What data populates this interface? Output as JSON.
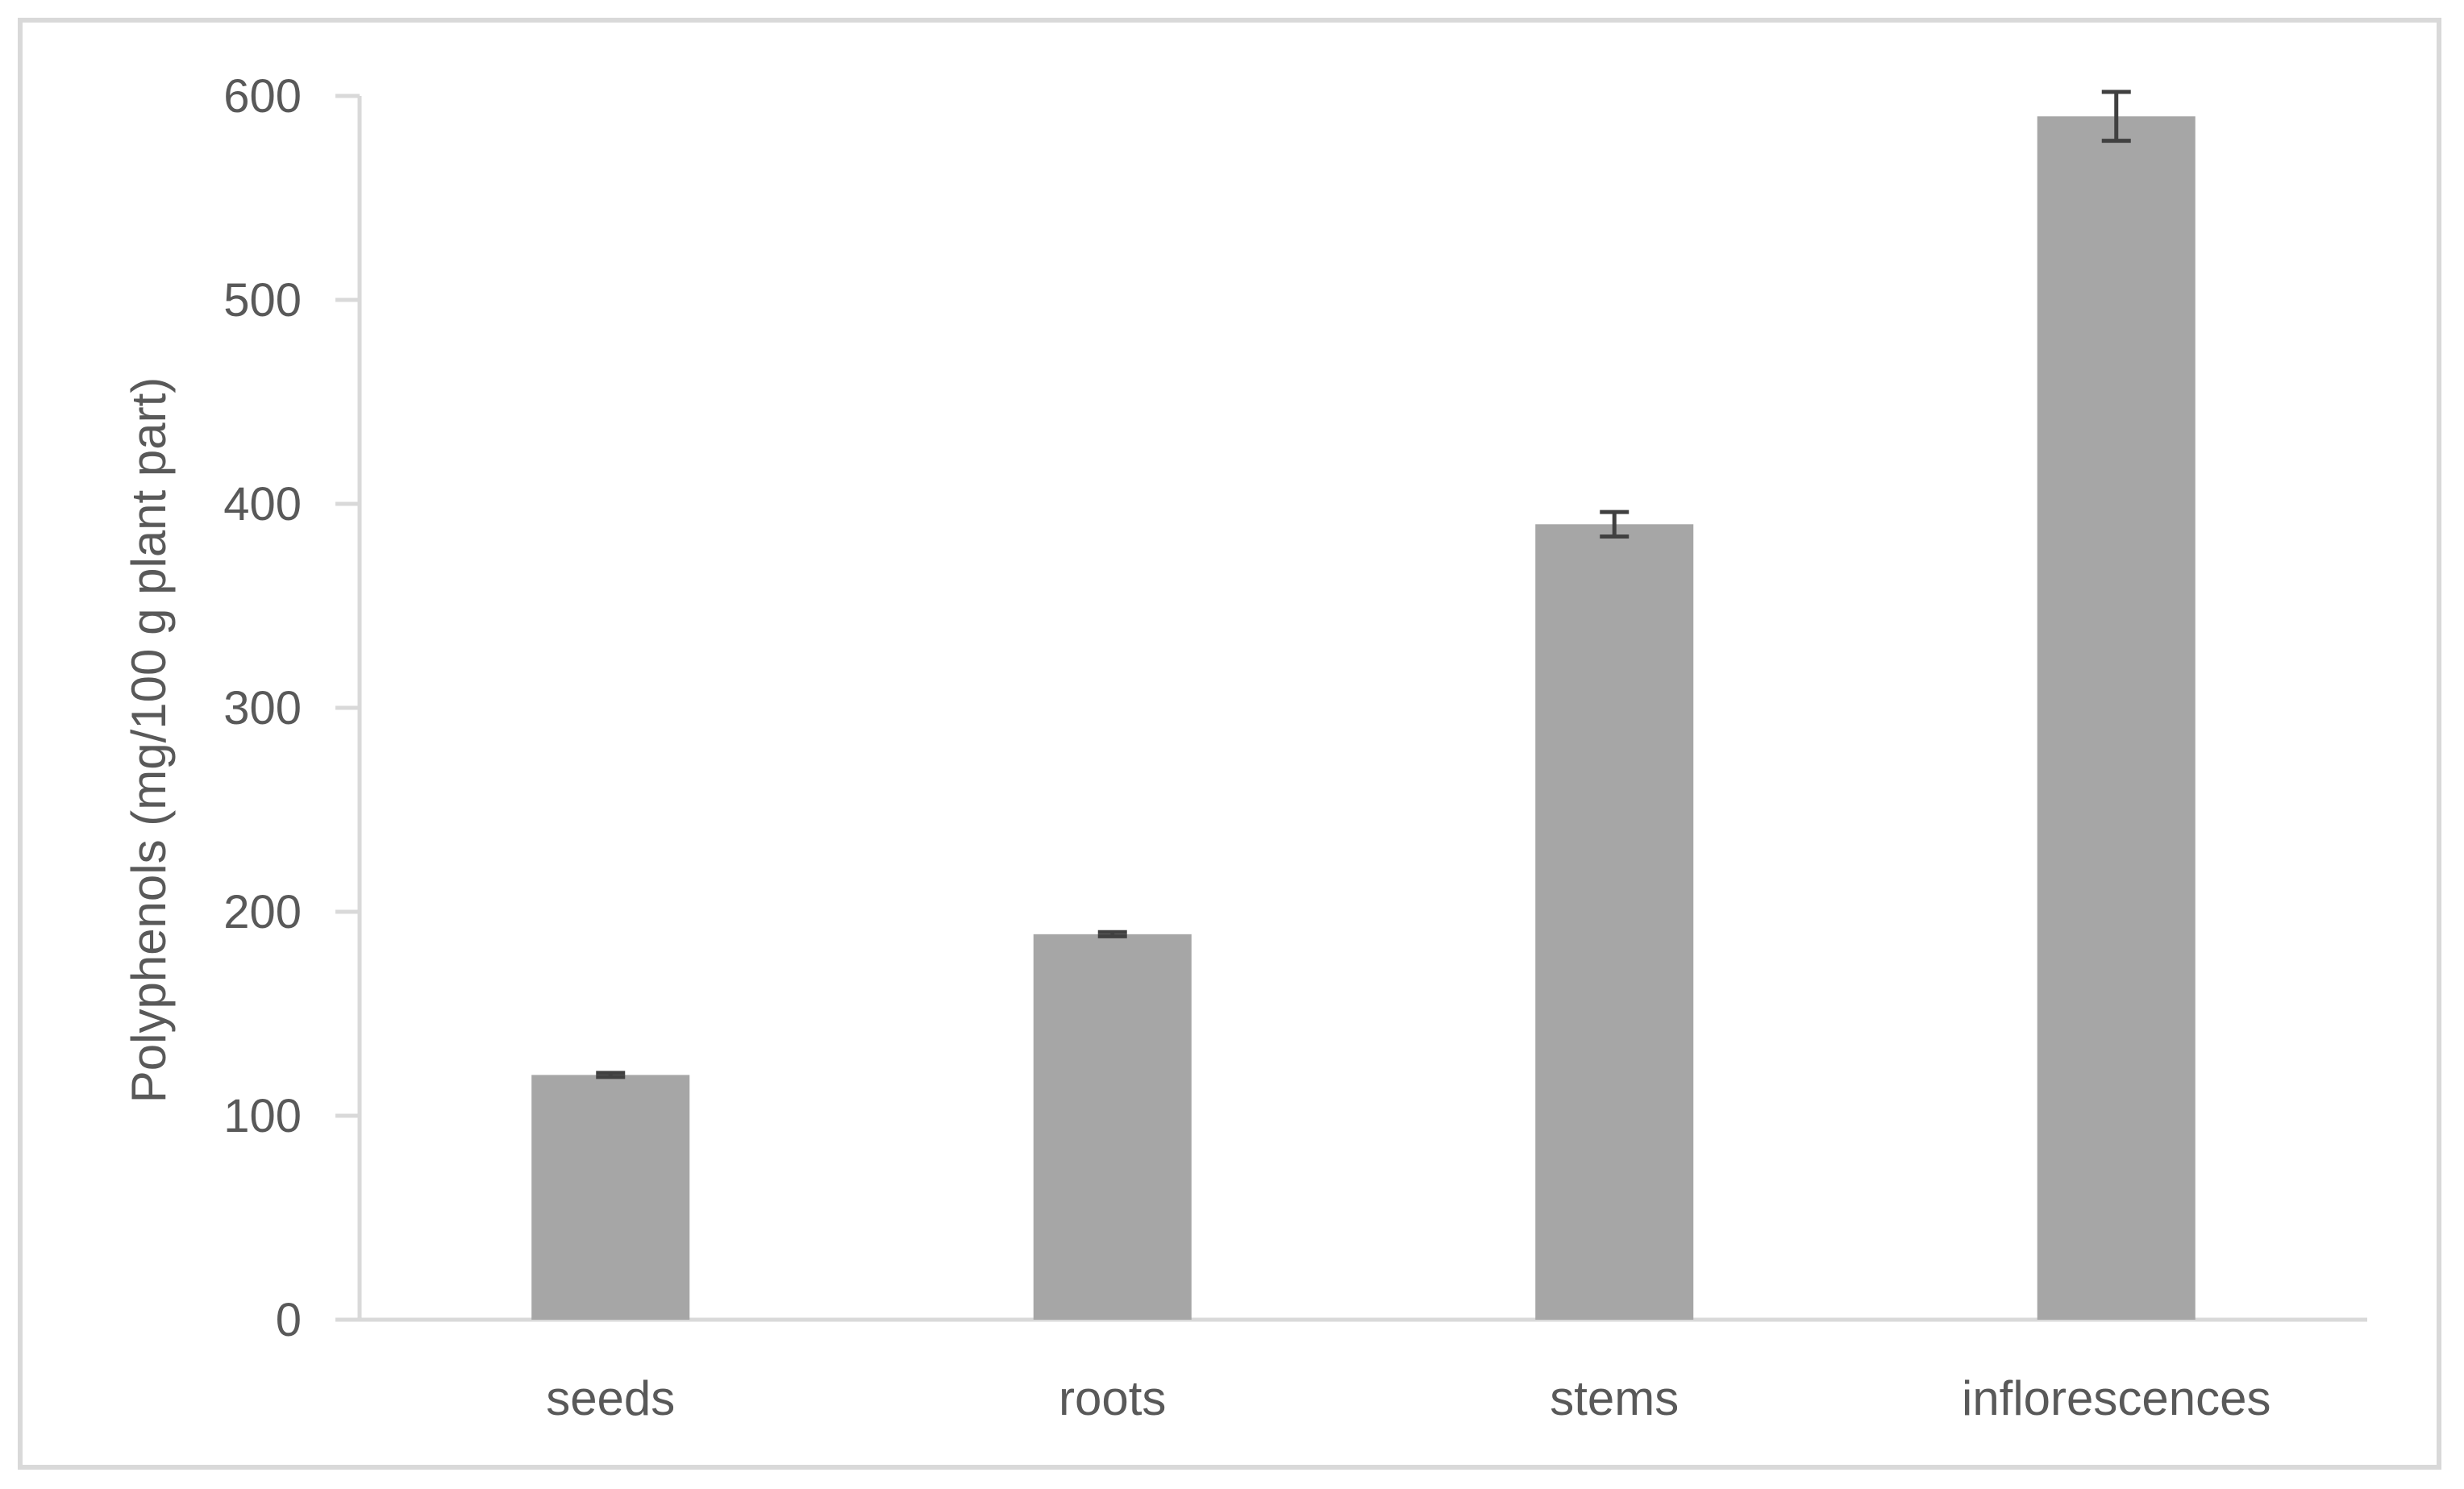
{
  "chart_data": {
    "type": "bar",
    "title": "",
    "xlabel": "",
    "ylabel": "Polyphenols (mg/100 g plant part)",
    "categories": [
      "seeds",
      "roots",
      "stems",
      "inflorescences"
    ],
    "values": [
      120,
      189,
      390,
      590
    ],
    "error": [
      1,
      1,
      6,
      12
    ],
    "ylim": [
      0,
      600
    ],
    "yticks": [
      0,
      100,
      200,
      300,
      400,
      500,
      600
    ],
    "grid": false,
    "legend": "none",
    "colors": {
      "bar": "#a6a6a6",
      "axis": "#d9d9d9",
      "error_bar": "#404040",
      "text": "#595959",
      "frame": "#d9d9d9"
    }
  }
}
